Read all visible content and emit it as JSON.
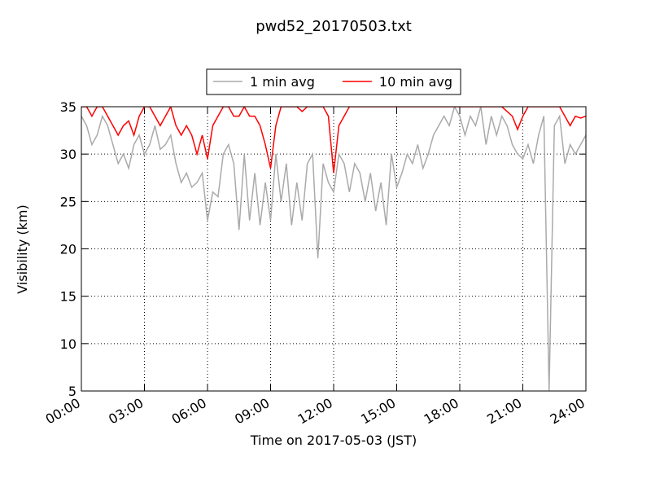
{
  "chart_data": {
    "type": "line",
    "title": "pwd52_20170503.txt",
    "x_label": "Time on 2017-05-03 (JST)",
    "y_label": "Visibility (km)",
    "xlim": [
      0,
      24
    ],
    "xticks": [
      {
        "value": 0,
        "label": "00:00"
      },
      {
        "value": 3,
        "label": "03:00"
      },
      {
        "value": 6,
        "label": "06:00"
      },
      {
        "value": 9,
        "label": "09:00"
      },
      {
        "value": 12,
        "label": "12:00"
      },
      {
        "value": 15,
        "label": "15:00"
      },
      {
        "value": 18,
        "label": "18:00"
      },
      {
        "value": 21,
        "label": "21:00"
      },
      {
        "value": 24,
        "label": "24:00"
      }
    ],
    "ylim": [
      5,
      35
    ],
    "yticks": [
      5,
      10,
      15,
      20,
      25,
      30,
      35
    ],
    "grid": true,
    "legend_position": "top",
    "x": [
      0,
      0.25,
      0.5,
      0.75,
      1,
      1.25,
      1.5,
      1.75,
      2,
      2.25,
      2.5,
      2.75,
      3,
      3.25,
      3.5,
      3.75,
      4,
      4.25,
      4.5,
      4.75,
      5,
      5.25,
      5.5,
      5.75,
      6,
      6.25,
      6.5,
      6.75,
      7,
      7.25,
      7.5,
      7.75,
      8,
      8.25,
      8.5,
      8.75,
      9,
      9.25,
      9.5,
      9.75,
      10,
      10.25,
      10.5,
      10.75,
      11,
      11.25,
      11.5,
      11.75,
      12,
      12.25,
      12.5,
      12.75,
      13,
      13.25,
      13.5,
      13.75,
      14,
      14.25,
      14.5,
      14.75,
      15,
      15.25,
      15.5,
      15.75,
      16,
      16.25,
      16.5,
      16.75,
      17,
      17.25,
      17.5,
      17.75,
      18,
      18.25,
      18.5,
      18.75,
      19,
      19.25,
      19.5,
      19.75,
      20,
      20.25,
      20.5,
      20.75,
      21,
      21.25,
      21.5,
      21.75,
      22,
      22.25,
      22.5,
      22.75,
      23,
      23.25,
      23.5,
      23.75,
      24
    ],
    "series": [
      {
        "name": "1 min avg",
        "color": "#aaaaaa",
        "values": [
          34,
          33,
          31,
          32,
          34,
          33,
          31,
          29,
          30,
          28.5,
          31,
          32,
          30,
          31,
          33,
          30.5,
          31,
          32,
          29,
          27,
          28,
          26.5,
          27,
          28,
          23,
          26,
          25.5,
          30,
          31,
          29,
          22,
          30,
          23,
          28,
          22.5,
          27,
          23,
          30,
          25,
          29,
          22.5,
          27,
          23,
          29,
          30,
          19,
          29,
          27,
          26,
          30,
          29,
          26,
          29,
          28,
          25,
          28,
          24,
          27,
          22.5,
          30,
          26.5,
          28,
          30,
          29,
          31,
          28.5,
          30,
          32,
          33,
          34,
          33,
          35,
          34,
          32,
          34,
          33,
          35,
          31,
          34,
          32,
          34,
          33,
          31,
          30,
          29.5,
          31,
          29,
          32,
          34,
          5,
          33,
          34,
          29,
          31,
          30,
          31,
          32
        ]
      },
      {
        "name": "10 min avg",
        "color": "#ff0000",
        "values": [
          35,
          35,
          34,
          35,
          35,
          34,
          33,
          32,
          33,
          33.5,
          32,
          34,
          35,
          35,
          34,
          33,
          34,
          35,
          33,
          32,
          33,
          32,
          30,
          32,
          29.5,
          33,
          34,
          35,
          35,
          34,
          34,
          35,
          34,
          34,
          33,
          31,
          28.5,
          33,
          35,
          35,
          35,
          35,
          34.5,
          35,
          35,
          35,
          35,
          34,
          28,
          33,
          34,
          35,
          35,
          35,
          35,
          35,
          35,
          35,
          35,
          35,
          35,
          35,
          35,
          35,
          35,
          35,
          35,
          35,
          35,
          35,
          35,
          35,
          35,
          35,
          35,
          35,
          35,
          35,
          35,
          35,
          35,
          34.5,
          34,
          32.6,
          34,
          35,
          35,
          35,
          35,
          35,
          35,
          35,
          34,
          33,
          34,
          33.8,
          34
        ]
      }
    ]
  }
}
